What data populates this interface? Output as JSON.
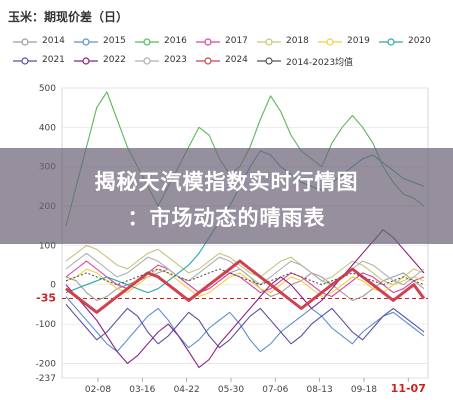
{
  "chart_data": {
    "type": "line",
    "title": "玉米：期现价差（日）",
    "yticks": [
      500,
      400,
      300,
      200,
      100,
      0,
      -35,
      -100,
      -200,
      -237
    ],
    "ylim": [
      -237,
      500
    ],
    "xticks": [
      "02-08",
      "03-16",
      "04-22",
      "05-30",
      "07-06",
      "08-13",
      "09-18",
      "11-07"
    ],
    "highlight": {
      "y_value": "-35",
      "x_label": "11-07"
    },
    "series": [
      {
        "name": "2014",
        "color": "#9e9e9e",
        "values": [
          20,
          10,
          -20,
          -40,
          -30,
          -10,
          0,
          10,
          20,
          30,
          40,
          20,
          0,
          -20,
          -10,
          10,
          30,
          40,
          20,
          -10,
          -30,
          -20,
          0,
          10,
          30,
          20,
          0,
          -20,
          -40,
          -30,
          -10,
          10,
          20,
          30,
          10,
          -10
        ]
      },
      {
        "name": "2015",
        "color": "#5b8fd0",
        "values": [
          -30,
          -60,
          -90,
          -120,
          -150,
          -170,
          -140,
          -110,
          -80,
          -60,
          -90,
          -130,
          -160,
          -140,
          -110,
          -90,
          -70,
          -100,
          -140,
          -170,
          -150,
          -120,
          -100,
          -80,
          -60,
          -80,
          -110,
          -130,
          -150,
          -120,
          -100,
          -80,
          -70,
          -90,
          -110,
          -130
        ]
      },
      {
        "name": "2016",
        "color": "#5cb85c",
        "values": [
          150,
          250,
          350,
          450,
          490,
          420,
          350,
          300,
          250,
          200,
          250,
          300,
          350,
          400,
          380,
          320,
          280,
          300,
          350,
          420,
          480,
          440,
          380,
          340,
          320,
          300,
          360,
          400,
          430,
          400,
          360,
          300,
          260,
          230,
          220,
          200
        ]
      },
      {
        "name": "2017",
        "color": "#e040a0",
        "values": [
          20,
          40,
          60,
          40,
          20,
          0,
          -10,
          10,
          30,
          50,
          40,
          20,
          0,
          -20,
          -10,
          10,
          30,
          20,
          0,
          -20,
          -10,
          10,
          30,
          20,
          0,
          -20,
          -30,
          -10,
          10,
          30,
          20,
          0,
          -20,
          -10,
          10,
          20
        ]
      },
      {
        "name": "2018",
        "color": "#c5c57a",
        "values": [
          60,
          80,
          100,
          90,
          70,
          50,
          40,
          60,
          80,
          90,
          70,
          50,
          30,
          40,
          60,
          80,
          70,
          50,
          30,
          20,
          40,
          60,
          70,
          50,
          30,
          10,
          20,
          40,
          60,
          50,
          30,
          10,
          0,
          20,
          40,
          30
        ]
      },
      {
        "name": "2019",
        "color": "#f0d040",
        "values": [
          10,
          20,
          40,
          30,
          10,
          -10,
          -20,
          0,
          20,
          40,
          30,
          10,
          -10,
          -30,
          -20,
          0,
          20,
          30,
          10,
          -10,
          -20,
          0,
          20,
          10,
          -10,
          -30,
          -20,
          0,
          20,
          10,
          -10,
          -20,
          0,
          10,
          20,
          10
        ]
      },
      {
        "name": "2020",
        "color": "#2ba8a8",
        "values": [
          -20,
          -10,
          0,
          10,
          20,
          10,
          0,
          -10,
          -20,
          -10,
          10,
          30,
          50,
          80,
          120,
          160,
          200,
          250,
          300,
          340,
          330,
          300,
          280,
          260,
          250,
          240,
          260,
          280,
          300,
          320,
          330,
          310,
          290,
          270,
          260,
          250
        ]
      },
      {
        "name": "2021",
        "color": "#5a4fa0",
        "values": [
          -50,
          -80,
          -110,
          -140,
          -120,
          -90,
          -60,
          -80,
          -120,
          -150,
          -130,
          -100,
          -70,
          -90,
          -130,
          -160,
          -140,
          -110,
          -80,
          -60,
          -90,
          -120,
          -150,
          -130,
          -100,
          -80,
          -60,
          -90,
          -120,
          -140,
          -110,
          -80,
          -60,
          -80,
          -100,
          -120
        ]
      },
      {
        "name": "2022",
        "color": "#8a2080",
        "values": [
          0,
          -30,
          -60,
          -90,
          -130,
          -170,
          -200,
          -180,
          -150,
          -120,
          -100,
          -130,
          -170,
          -210,
          -190,
          -150,
          -120,
          -90,
          -60,
          -30,
          0,
          20,
          0,
          -30,
          -60,
          -40,
          -10,
          20,
          50,
          80,
          110,
          140,
          120,
          90,
          60,
          30
        ]
      },
      {
        "name": "2023",
        "color": "#b0b0b0",
        "values": [
          40,
          60,
          80,
          60,
          40,
          20,
          30,
          50,
          70,
          60,
          40,
          20,
          10,
          30,
          50,
          70,
          60,
          40,
          20,
          0,
          20,
          40,
          60,
          50,
          30,
          10,
          0,
          20,
          40,
          60,
          50,
          30,
          10,
          0,
          20,
          40
        ]
      },
      {
        "name": "2024",
        "color": "#d04050",
        "values": [
          -10,
          -30,
          -50,
          -70,
          -50,
          -30,
          -10,
          10,
          30,
          20,
          0,
          -20,
          -40,
          -20,
          0,
          20,
          40,
          60,
          40,
          20,
          0,
          -20,
          -40,
          -60,
          -40,
          -20,
          0,
          20,
          40,
          20,
          0,
          -20,
          -40,
          -20,
          0,
          -35
        ]
      },
      {
        "name": "2014-2023均值",
        "color": "#555555",
        "values": [
          10,
          20,
          30,
          20,
          10,
          0,
          10,
          20,
          30,
          40,
          30,
          20,
          10,
          20,
          30,
          40,
          30,
          20,
          10,
          0,
          10,
          20,
          30,
          20,
          10,
          0,
          10,
          20,
          30,
          20,
          10,
          0,
          10,
          20,
          10,
          0
        ]
      }
    ]
  },
  "banner": {
    "line1": "揭秘天汽模指数实时行情图",
    "line2": "：市场动态的晴雨表"
  }
}
